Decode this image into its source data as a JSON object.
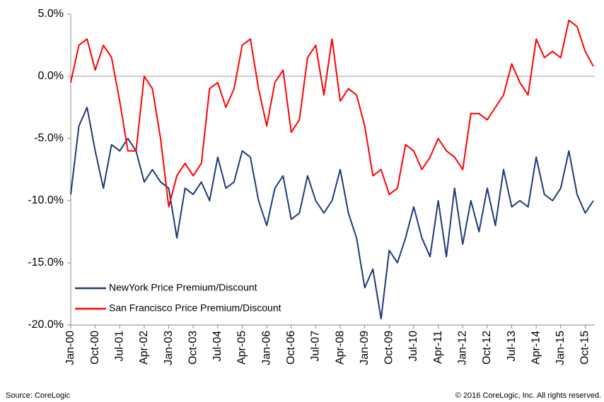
{
  "chart_data": {
    "type": "line",
    "categories": [
      "Jan-00",
      null,
      null,
      "Oct-00",
      null,
      null,
      "Jul-01",
      null,
      null,
      "Apr-02",
      null,
      null,
      "Jan-03",
      null,
      null,
      "Oct-03",
      null,
      null,
      "Jul-04",
      null,
      null,
      "Apr-05",
      null,
      null,
      "Jan-06",
      null,
      null,
      "Oct-06",
      null,
      null,
      "Jul-07",
      null,
      null,
      "Apr-08",
      null,
      null,
      "Jan-09",
      null,
      null,
      "Oct-09",
      null,
      null,
      "Jul-10",
      null,
      null,
      "Apr-11",
      null,
      null,
      "Jan-12",
      null,
      null,
      "Oct-12",
      null,
      null,
      "Jul-13",
      null,
      null,
      "Apr-14",
      null,
      null,
      "Jan-15",
      null,
      null,
      "Oct-15",
      null
    ],
    "series": [
      {
        "name": "NewYork Price Premium/Discount",
        "color": "#1f3a7a",
        "values": [
          -9.5,
          -4,
          -2.5,
          -6,
          -9,
          -5.5,
          -6,
          -5,
          -6,
          -8.5,
          -7.5,
          -8.5,
          -9,
          -13,
          -9,
          -9.5,
          -8.5,
          -10,
          -6.5,
          -9,
          -8.5,
          -6,
          -6.5,
          -10,
          -12,
          -9,
          -8,
          -11.5,
          -11,
          -8,
          -10,
          -11,
          -10,
          -7.5,
          -11,
          -13,
          -17,
          -15.5,
          -19.5,
          -14,
          -15,
          -13,
          -10.5,
          -13,
          -14.5,
          -10,
          -14.5,
          -9,
          -13.5,
          -10,
          -12.5,
          -9,
          -12,
          -7.5,
          -10.5,
          -10,
          -10.5,
          -6.5,
          -9.5,
          -10,
          -9,
          -6,
          -9.5,
          -11,
          -10
        ]
      },
      {
        "name": "San Francisco Price Premium/Discount",
        "color": "#ff0000",
        "values": [
          -0.5,
          2.5,
          3,
          0.5,
          2.5,
          1.5,
          -2,
          -6,
          -6,
          0,
          -1,
          -5,
          -10.5,
          -8,
          -7,
          -8,
          -7,
          -1,
          -0.5,
          -2.5,
          -1,
          2.5,
          3,
          -1,
          -4,
          -0.5,
          0.5,
          -4.5,
          -3.5,
          1.5,
          2.5,
          -1.5,
          3,
          -2,
          -1,
          -1.5,
          -4,
          -8,
          -7.5,
          -9.5,
          -9,
          -5.5,
          -6,
          -7.5,
          -6.5,
          -5,
          -6,
          -6.5,
          -7.5,
          -3,
          -3,
          -3.5,
          -2.5,
          -1.5,
          1,
          -0.5,
          -1.5,
          3,
          1.5,
          2,
          1.5,
          4.5,
          4,
          2,
          0.8
        ]
      }
    ],
    "ylim": [
      -20,
      5
    ],
    "yticks": [
      {
        "value": -20,
        "label": "-20.0%"
      },
      {
        "value": -15,
        "label": "-15.0%"
      },
      {
        "value": -10,
        "label": "-10.0%"
      },
      {
        "value": -5,
        "label": "-5.0%"
      },
      {
        "value": 0,
        "label": "0.0%"
      },
      {
        "value": 5,
        "label": "5.0%"
      }
    ],
    "source": "Source: CoreLogic",
    "copyright": "© 2016 CoreLogic, Inc. All rights reserved."
  }
}
